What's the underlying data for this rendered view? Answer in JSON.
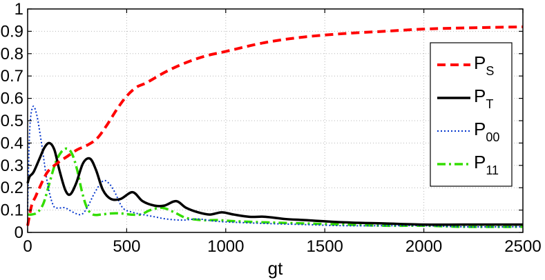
{
  "chart_data": {
    "type": "line",
    "title": "",
    "xlabel": "gt",
    "ylabel": "",
    "xlim": [
      0,
      2500
    ],
    "ylim": [
      0,
      1
    ],
    "grid": true,
    "legend_position": "right",
    "x_ticks": [
      0,
      500,
      1000,
      1500,
      2000,
      2500
    ],
    "y_ticks": [
      0,
      0.1,
      0.2,
      0.3,
      0.4,
      0.5,
      0.6,
      0.7,
      0.8,
      0.9,
      1
    ],
    "x_tick_labels": [
      "0",
      "500",
      "1000",
      "1500",
      "2000",
      "2500"
    ],
    "y_tick_labels": [
      "0",
      "0.1",
      "0.2",
      "0.3",
      "0.4",
      "0.5",
      "0.6",
      "0.7",
      "0.8",
      "0.9",
      "1"
    ],
    "series": [
      {
        "name": "PS",
        "label_main": "P",
        "label_sub": "S",
        "color": "#ff0000",
        "style": "dashed",
        "x": [
          0,
          20,
          40,
          60,
          100,
          150,
          200,
          250,
          300,
          350,
          400,
          450,
          500,
          550,
          600,
          700,
          800,
          900,
          1000,
          1200,
          1400,
          1600,
          1800,
          2000,
          2200,
          2500
        ],
        "y": [
          0.03,
          0.12,
          0.16,
          0.2,
          0.27,
          0.31,
          0.34,
          0.37,
          0.39,
          0.42,
          0.48,
          0.55,
          0.61,
          0.65,
          0.67,
          0.72,
          0.76,
          0.79,
          0.81,
          0.85,
          0.875,
          0.89,
          0.9,
          0.91,
          0.915,
          0.92
        ]
      },
      {
        "name": "PT",
        "label_main": "P",
        "label_sub": "T",
        "color": "#000000",
        "style": "solid",
        "x": [
          0,
          10,
          30,
          60,
          85,
          110,
          135,
          160,
          190,
          215,
          245,
          280,
          315,
          345,
          380,
          420,
          470,
          530,
          580,
          640,
          690,
          750,
          800,
          860,
          920,
          980,
          1040,
          1120,
          1200,
          1300,
          1400,
          1600,
          1800,
          2000,
          2200,
          2500
        ],
        "y": [
          0.22,
          0.25,
          0.27,
          0.33,
          0.38,
          0.4,
          0.37,
          0.28,
          0.19,
          0.17,
          0.22,
          0.31,
          0.33,
          0.28,
          0.19,
          0.15,
          0.15,
          0.18,
          0.14,
          0.12,
          0.12,
          0.14,
          0.11,
          0.09,
          0.08,
          0.09,
          0.08,
          0.07,
          0.07,
          0.06,
          0.055,
          0.045,
          0.04,
          0.035,
          0.035,
          0.035
        ]
      },
      {
        "name": "P00",
        "label_main": "P",
        "label_sub": "00",
        "color": "#0033cc",
        "style": "dotted",
        "x": [
          0,
          10,
          25,
          45,
          70,
          100,
          130,
          160,
          190,
          230,
          270,
          300,
          340,
          380,
          410,
          440,
          480,
          530,
          580,
          640,
          700,
          780,
          860,
          950,
          1050,
          1200,
          1400,
          1600,
          1800,
          2000,
          2200,
          2500
        ],
        "y": [
          0.1,
          0.45,
          0.56,
          0.53,
          0.4,
          0.22,
          0.12,
          0.11,
          0.11,
          0.09,
          0.08,
          0.11,
          0.18,
          0.23,
          0.22,
          0.18,
          0.11,
          0.09,
          0.08,
          0.07,
          0.06,
          0.055,
          0.06,
          0.05,
          0.045,
          0.04,
          0.035,
          0.03,
          0.03,
          0.03,
          0.025,
          0.025
        ]
      },
      {
        "name": "P11",
        "label_main": "P",
        "label_sub": "11",
        "color": "#33dd00",
        "style": "dashdot",
        "x": [
          0,
          20,
          50,
          80,
          110,
          140,
          170,
          200,
          225,
          250,
          275,
          300,
          330,
          370,
          420,
          470,
          520,
          570,
          620,
          680,
          740,
          800,
          880,
          960,
          1050,
          1200,
          1400,
          1600,
          1800,
          2000,
          2200,
          2500
        ],
        "y": [
          0.08,
          0.08,
          0.09,
          0.13,
          0.22,
          0.31,
          0.36,
          0.375,
          0.35,
          0.28,
          0.18,
          0.11,
          0.08,
          0.08,
          0.085,
          0.085,
          0.08,
          0.08,
          0.1,
          0.11,
          0.09,
          0.065,
          0.055,
          0.055,
          0.05,
          0.045,
          0.04,
          0.035,
          0.03,
          0.03,
          0.025,
          0.025
        ]
      }
    ]
  }
}
